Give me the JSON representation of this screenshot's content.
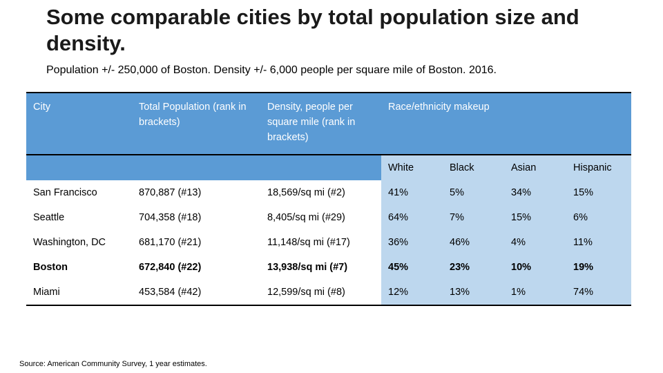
{
  "title": "Some comparable cities by total population size and density.",
  "subtitle": "Population +/- 250,000 of Boston. Density +/- 6,000 people per square mile of Boston. 2016.",
  "table": {
    "headers": {
      "city": "City",
      "population": "Total Population (rank in brackets)",
      "density": "Density, people per square mile (rank in brackets)",
      "race": "Race/ethnicity makeup"
    },
    "race_subheaders": [
      "White",
      "Black",
      "Asian",
      "Hispanic"
    ],
    "rows": [
      {
        "city": "San Francisco",
        "population": "870,887 (#13)",
        "density": "18,569/sq mi (#2)",
        "white": "41%",
        "black": "5%",
        "asian": "34%",
        "hispanic": "15%"
      },
      {
        "city": "Seattle",
        "population": "704,358 (#18)",
        "density": "8,405/sq mi (#29)",
        "white": "64%",
        "black": "7%",
        "asian": "15%",
        "hispanic": "6%"
      },
      {
        "city": "Washington, DC",
        "population": "681,170 (#21)",
        "density": "11,148/sq mi (#17)",
        "white": "36%",
        "black": "46%",
        "asian": "4%",
        "hispanic": "11%"
      },
      {
        "city": "Boston",
        "population": "672,840 (#22)",
        "density": "13,938/sq mi (#7)",
        "white": "45%",
        "black": "23%",
        "asian": "10%",
        "hispanic": "19%"
      },
      {
        "city": "Miami",
        "population": "453,584 (#42)",
        "density": "12,599/sq mi (#8)",
        "white": "12%",
        "black": "13%",
        "asian": "1%",
        "hispanic": "74%"
      }
    ]
  },
  "source": "Source: American Community Survey, 1 year estimates.",
  "colors": {
    "header_blue": "#5b9bd5",
    "race_light_blue": "#bdd7ee"
  }
}
